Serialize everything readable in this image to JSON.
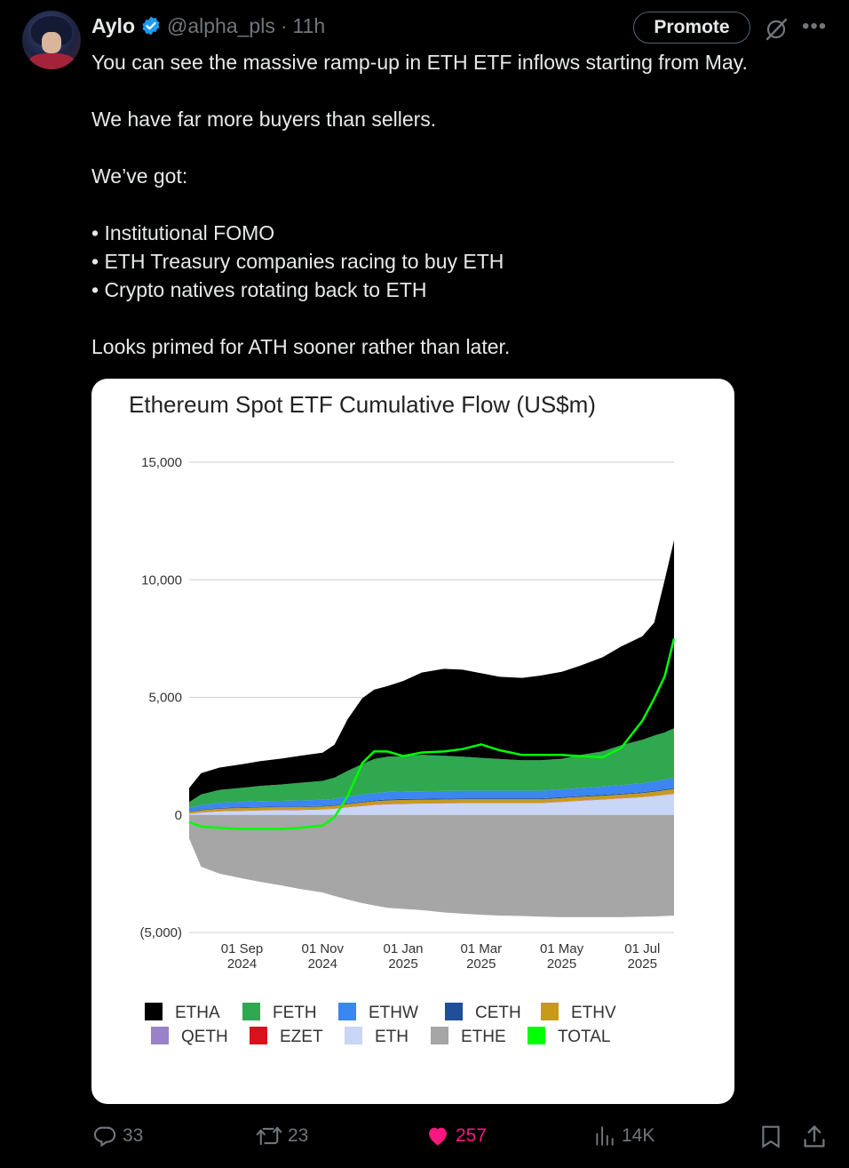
{
  "author": {
    "name": "Aylo",
    "handle": "@alpha_pls",
    "separator": "·",
    "time": "11h"
  },
  "header_actions": {
    "promote_label": "Promote"
  },
  "tweet": {
    "lines": [
      "You can see the massive ramp-up in ETH ETF inflows starting from May.",
      "",
      "We have far more buyers than sellers.",
      "",
      "We’ve got:",
      "",
      "• Institutional FOMO",
      "• ETH Treasury companies racing to buy ETH",
      "• Crypto natives rotating back to ETH",
      "",
      "Looks primed for ATH sooner rather than later."
    ]
  },
  "chart_data": {
    "type": "area",
    "title": "Ethereum Spot ETF Cumulative Flow (US$m)",
    "ylim": [
      -5000,
      15000
    ],
    "y_ticks": [
      {
        "value": 15000,
        "label": "15,000"
      },
      {
        "value": 10000,
        "label": "10,000"
      },
      {
        "value": 5000,
        "label": "5,000"
      },
      {
        "value": 0,
        "label": "0"
      },
      {
        "value": -5000,
        "label": "(5,000)"
      }
    ],
    "x_range": [
      "2024-07-23",
      "2025-07-25"
    ],
    "x_ticks": [
      {
        "date": "2024-09-01",
        "line1": "01 Sep",
        "line2": "2024"
      },
      {
        "date": "2024-11-01",
        "line1": "01 Nov",
        "line2": "2024"
      },
      {
        "date": "2025-01-01",
        "line1": "01 Jan",
        "line2": "2025"
      },
      {
        "date": "2025-03-01",
        "line1": "01 Mar",
        "line2": "2025"
      },
      {
        "date": "2025-05-01",
        "line1": "01 May",
        "line2": "2025"
      },
      {
        "date": "2025-07-01",
        "line1": "01 Jul",
        "line2": "2025"
      }
    ],
    "grid": true,
    "legend_position": "bottom",
    "dates": [
      "2024-07-23",
      "2024-08-01",
      "2024-08-15",
      "2024-09-01",
      "2024-09-15",
      "2024-10-01",
      "2024-10-15",
      "2024-11-01",
      "2024-11-10",
      "2024-11-20",
      "2024-12-01",
      "2024-12-10",
      "2024-12-20",
      "2025-01-01",
      "2025-01-15",
      "2025-02-01",
      "2025-02-15",
      "2025-03-01",
      "2025-03-15",
      "2025-04-01",
      "2025-04-15",
      "2025-05-01",
      "2025-05-15",
      "2025-06-01",
      "2025-06-15",
      "2025-07-01",
      "2025-07-10",
      "2025-07-18",
      "2025-07-25"
    ],
    "series": [
      {
        "name": "ETHE",
        "color": "#a6a6a6",
        "values": [
          -1000,
          -2200,
          -2500,
          -2700,
          -2850,
          -3000,
          -3150,
          -3300,
          -3450,
          -3600,
          -3750,
          -3850,
          -3950,
          -4000,
          -4050,
          -4150,
          -4200,
          -4250,
          -4280,
          -4300,
          -4330,
          -4350,
          -4350,
          -4350,
          -4350,
          -4330,
          -4320,
          -4300,
          -4280
        ]
      },
      {
        "name": "ETH",
        "color": "#c9d6f5",
        "values": [
          50,
          100,
          150,
          170,
          190,
          200,
          210,
          230,
          260,
          320,
          380,
          420,
          450,
          470,
          480,
          490,
          500,
          500,
          500,
          500,
          500,
          550,
          600,
          650,
          700,
          750,
          800,
          850,
          900
        ]
      },
      {
        "name": "EZET",
        "color": "#d9111b",
        "values": [
          10,
          10,
          10,
          10,
          10,
          10,
          10,
          10,
          10,
          10,
          10,
          10,
          10,
          10,
          10,
          10,
          10,
          10,
          10,
          10,
          10,
          10,
          10,
          10,
          10,
          10,
          10,
          10,
          10
        ]
      },
      {
        "name": "QETH",
        "color": "#9a82c9",
        "values": [
          5,
          5,
          5,
          5,
          5,
          5,
          5,
          5,
          5,
          5,
          5,
          5,
          5,
          5,
          5,
          5,
          5,
          5,
          5,
          5,
          5,
          5,
          5,
          5,
          5,
          5,
          5,
          5,
          5
        ]
      },
      {
        "name": "ETHV",
        "color": "#c79a1a",
        "values": [
          60,
          80,
          100,
          110,
          110,
          110,
          110,
          110,
          110,
          120,
          130,
          140,
          150,
          150,
          150,
          150,
          150,
          150,
          150,
          150,
          150,
          150,
          150,
          150,
          150,
          160,
          170,
          180,
          190
        ]
      },
      {
        "name": "CETH",
        "color": "#1f4e9a",
        "values": [
          20,
          25,
          30,
          30,
          30,
          30,
          30,
          30,
          30,
          30,
          35,
          40,
          40,
          40,
          40,
          40,
          40,
          40,
          40,
          40,
          40,
          40,
          40,
          40,
          40,
          40,
          40,
          40,
          40
        ]
      },
      {
        "name": "ETHW",
        "color": "#3b86f0",
        "values": [
          150,
          200,
          220,
          230,
          240,
          240,
          250,
          260,
          270,
          290,
          300,
          310,
          320,
          320,
          320,
          320,
          320,
          320,
          320,
          320,
          320,
          330,
          340,
          350,
          360,
          380,
          400,
          420,
          440
        ]
      },
      {
        "name": "FETH",
        "color": "#2fa84f",
        "values": [
          250,
          450,
          550,
          600,
          650,
          700,
          750,
          800,
          900,
          1100,
          1300,
          1450,
          1500,
          1500,
          1550,
          1500,
          1450,
          1400,
          1350,
          1300,
          1300,
          1300,
          1400,
          1500,
          1700,
          1850,
          1950,
          2000,
          2100
        ]
      },
      {
        "name": "ETHA",
        "color": "#000000",
        "values": [
          600,
          900,
          950,
          1000,
          1050,
          1100,
          1150,
          1200,
          1400,
          2200,
          2800,
          2950,
          3000,
          3200,
          3500,
          3700,
          3700,
          3600,
          3500,
          3500,
          3600,
          3700,
          3800,
          4000,
          4200,
          4400,
          4800,
          6500,
          8000
        ]
      }
    ],
    "total": {
      "name": "TOTAL",
      "color": "#00ff00",
      "values": [
        -300,
        -500,
        -550,
        -600,
        -600,
        -600,
        -550,
        -450,
        -100,
        800,
        2200,
        2700,
        2700,
        2500,
        2650,
        2700,
        2800,
        3000,
        2750,
        2550,
        2550,
        2550,
        2500,
        2450,
        2850,
        4000,
        4950,
        5900,
        7500
      ]
    },
    "legend": [
      [
        "ETHA",
        "#000000"
      ],
      [
        "FETH",
        "#2fa84f"
      ],
      [
        "ETHW",
        "#3b86f0"
      ],
      [
        "CETH",
        "#1f4e9a"
      ],
      [
        "ETHV",
        "#c79a1a"
      ],
      [
        "QETH",
        "#9a82c9"
      ],
      [
        "EZET",
        "#d9111b"
      ],
      [
        "ETH",
        "#c9d6f5"
      ],
      [
        "ETHE",
        "#a6a6a6"
      ],
      [
        "TOTAL",
        "#00ff00"
      ]
    ]
  },
  "engagement": {
    "replies": "33",
    "reposts": "23",
    "likes": "257",
    "views": "14K"
  },
  "icons": [
    "verified-badge-icon",
    "grok-icon",
    "more-icon",
    "reply-icon",
    "repost-icon",
    "like-icon",
    "views-icon",
    "bookmark-icon",
    "share-icon"
  ]
}
